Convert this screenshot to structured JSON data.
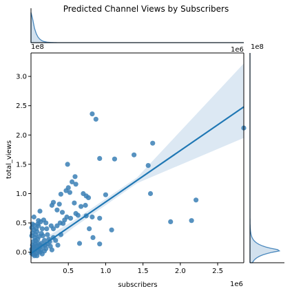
{
  "chart_data": {
    "type": "scatter",
    "title": "Predicted Channel Views by Subscribers",
    "xlabel": "subscribers",
    "ylabel": "total_views",
    "x_multiplier_label": "1e6",
    "y_multiplier_label": "1e8",
    "top_marginal_multiplier_label": "1e6",
    "right_marginal_multiplier_label": "1e8",
    "x_unit": 1000000,
    "y_unit": 100000000,
    "xlim": [
      0,
      2.85
    ],
    "ylim": [
      -0.18,
      3.4
    ],
    "x_ticks": [
      0.5,
      1.0,
      1.5,
      2.0,
      2.5
    ],
    "x_tick_labels": [
      "0.5",
      "1.0",
      "1.5",
      "2.0",
      "2.5"
    ],
    "y_ticks": [
      0.0,
      0.5,
      1.0,
      1.5,
      2.0,
      2.5,
      3.0
    ],
    "y_tick_labels": [
      "0.0",
      "0.5",
      "1.0",
      "1.5",
      "2.0",
      "2.5",
      "3.0"
    ],
    "grid": false,
    "regression": {
      "x_start": 0.0,
      "y_start": -0.02,
      "x_end": 2.85,
      "y_end": 2.48,
      "ci_upper_end": 3.22,
      "ci_lower_end": 1.95,
      "ci_upper_mid": 0.05,
      "ci_lower_mid": -0.05
    },
    "colors": {
      "points": "#3a7fb5",
      "line": "#1f77b4",
      "band": "#dce8f3",
      "marginal": "#4a88bd"
    },
    "points": [
      [
        2.85,
        2.12
      ],
      [
        0.82,
        2.36
      ],
      [
        0.87,
        2.27
      ],
      [
        1.63,
        1.86
      ],
      [
        0.92,
        1.6
      ],
      [
        1.12,
        1.59
      ],
      [
        1.38,
        1.66
      ],
      [
        1.57,
        1.48
      ],
      [
        0.49,
        1.5
      ],
      [
        0.59,
        1.29
      ],
      [
        0.55,
        1.2
      ],
      [
        0.6,
        1.16
      ],
      [
        0.5,
        1.1
      ],
      [
        0.47,
        1.05
      ],
      [
        0.52,
        1.02
      ],
      [
        0.4,
        0.99
      ],
      [
        0.7,
        1.0
      ],
      [
        0.74,
        0.96
      ],
      [
        0.77,
        0.93
      ],
      [
        1.0,
        0.98
      ],
      [
        1.6,
        1.0
      ],
      [
        0.73,
        0.8
      ],
      [
        0.67,
        0.78
      ],
      [
        0.58,
        0.84
      ],
      [
        0.3,
        0.85
      ],
      [
        0.38,
        0.82
      ],
      [
        0.28,
        0.8
      ],
      [
        2.21,
        0.89
      ],
      [
        0.82,
        0.6
      ],
      [
        0.92,
        0.58
      ],
      [
        0.63,
        0.63
      ],
      [
        0.74,
        0.62
      ],
      [
        0.6,
        0.66
      ],
      [
        0.12,
        0.7
      ],
      [
        0.35,
        0.72
      ],
      [
        0.42,
        0.68
      ],
      [
        0.48,
        0.6
      ],
      [
        0.45,
        0.55
      ],
      [
        0.53,
        0.58
      ],
      [
        0.43,
        0.49
      ],
      [
        0.39,
        0.5
      ],
      [
        0.35,
        0.45
      ],
      [
        0.27,
        0.45
      ],
      [
        0.3,
        0.4
      ],
      [
        0.17,
        0.55
      ],
      [
        0.13,
        0.52
      ],
      [
        0.1,
        0.54
      ],
      [
        0.2,
        0.5
      ],
      [
        0.04,
        0.6
      ],
      [
        0.07,
        0.4
      ],
      [
        0.15,
        0.4
      ],
      [
        0.1,
        0.45
      ],
      [
        1.08,
        0.38
      ],
      [
        0.78,
        0.4
      ],
      [
        0.83,
        0.25
      ],
      [
        0.65,
        0.15
      ],
      [
        0.92,
        0.14
      ],
      [
        1.87,
        0.52
      ],
      [
        2.15,
        0.54
      ],
      [
        0.4,
        0.3
      ],
      [
        0.3,
        0.25
      ],
      [
        0.22,
        0.3
      ],
      [
        0.18,
        0.2
      ],
      [
        0.25,
        0.18
      ],
      [
        0.14,
        0.15
      ],
      [
        0.08,
        0.1
      ],
      [
        0.05,
        0.05
      ],
      [
        0.02,
        0.02
      ],
      [
        0.03,
        0.08
      ],
      [
        0.06,
        0.2
      ],
      [
        0.09,
        0.15
      ],
      [
        0.11,
        0.08
      ],
      [
        0.12,
        0.12
      ],
      [
        0.16,
        0.1
      ],
      [
        0.2,
        0.06
      ],
      [
        0.04,
        0.0
      ],
      [
        0.07,
        -0.02
      ],
      [
        0.1,
        0.02
      ],
      [
        0.13,
        0.04
      ],
      [
        0.18,
        0.02
      ],
      [
        0.01,
        0.05
      ],
      [
        0.02,
        0.12
      ],
      [
        0.03,
        0.18
      ],
      [
        0.05,
        0.25
      ],
      [
        0.06,
        0.3
      ],
      [
        0.08,
        0.35
      ],
      [
        0.01,
        0.28
      ],
      [
        0.02,
        0.33
      ],
      [
        0.04,
        0.38
      ],
      [
        0.03,
        -0.04
      ],
      [
        0.05,
        -0.06
      ],
      [
        0.06,
        0.14
      ],
      [
        0.09,
        0.22
      ],
      [
        0.11,
        0.27
      ],
      [
        0.14,
        0.32
      ],
      [
        0.16,
        0.28
      ],
      [
        0.22,
        0.14
      ],
      [
        0.26,
        0.1
      ],
      [
        0.28,
        0.04
      ],
      [
        0.15,
        -0.03
      ],
      [
        0.08,
        -0.06
      ],
      [
        0.01,
        -0.02
      ],
      [
        0.02,
        0.0
      ],
      [
        0.04,
        0.1
      ],
      [
        0.07,
        0.06
      ],
      [
        0.12,
        0.0
      ],
      [
        0.19,
        0.12
      ],
      [
        0.24,
        0.22
      ],
      [
        0.21,
        0.4
      ],
      [
        0.33,
        0.2
      ],
      [
        0.36,
        0.12
      ],
      [
        0.09,
        0.48
      ],
      [
        0.01,
        0.42
      ],
      [
        0.02,
        0.48
      ],
      [
        0.04,
        0.46
      ]
    ],
    "marginal_top": {
      "peak_x": 0.01,
      "peak_height_frac": 0.88,
      "decay": 0.05
    },
    "marginal_right": {
      "peak_y": 0.03,
      "peak_width_frac": 0.95,
      "decay": 0.08
    }
  }
}
